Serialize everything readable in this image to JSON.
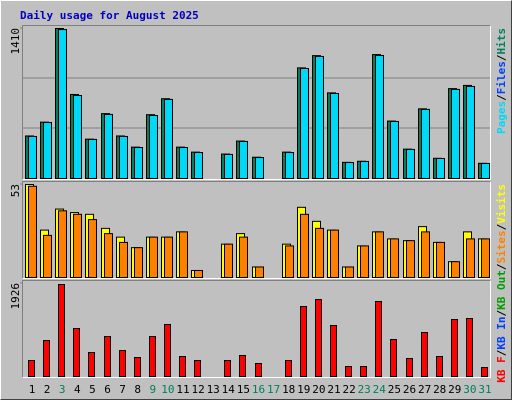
{
  "legend_separator": "/",
  "chart_data": [
    {
      "type": "bar",
      "title": "Daily usage for August 2025",
      "title_color": "#0000c0",
      "ylim": [
        0,
        1410
      ],
      "yticks": [
        1410
      ],
      "series": [
        {
          "name": "Hits",
          "color": "#00805c",
          "values": [
            400,
            530,
            1410,
            790,
            370,
            610,
            400,
            295,
            600,
            750,
            295,
            248,
            0,
            230,
            352,
            200,
            0,
            248,
            1040,
            1155,
            805,
            152,
            162,
            1165,
            540,
            276,
            655,
            190,
            845,
            875,
            143
          ]
        },
        {
          "name": "Files",
          "color": "#0040ff",
          "values": [
            395,
            526,
            1400,
            780,
            367,
            602,
            395,
            291,
            592,
            743,
            291,
            244,
            0,
            226,
            348,
            197,
            0,
            244,
            1034,
            1147,
            799,
            150,
            160,
            1156,
            536,
            273,
            649,
            188,
            837,
            865,
            141
          ]
        },
        {
          "name": "Pages",
          "color": "#00d8f8",
          "values": [
            395,
            526,
            1400,
            780,
            367,
            602,
            395,
            291,
            592,
            743,
            291,
            244,
            0,
            226,
            348,
            197,
            0,
            244,
            1034,
            1147,
            799,
            150,
            160,
            1156,
            536,
            273,
            649,
            188,
            837,
            865,
            141
          ]
        }
      ]
    },
    {
      "type": "bar",
      "ylim": [
        0,
        53
      ],
      "yticks": [
        53
      ],
      "series": [
        {
          "name": "Visits",
          "color": "#ffff00",
          "values": [
            53,
            27,
            39,
            37,
            36,
            28,
            23,
            17,
            23,
            23,
            26,
            4,
            0,
            19,
            25,
            6,
            0,
            19,
            40,
            32,
            27,
            6,
            18,
            26,
            22,
            21,
            29,
            20,
            9,
            26,
            22
          ]
        },
        {
          "name": "Sites",
          "color": "#ff8000",
          "values": [
            52,
            24,
            38,
            36,
            33,
            25,
            20,
            17,
            23,
            23,
            26,
            4,
            0,
            19,
            23,
            6,
            0,
            18,
            36,
            28,
            27,
            6,
            18,
            26,
            22,
            21,
            26,
            20,
            9,
            22,
            22
          ]
        }
      ]
    },
    {
      "type": "bar",
      "ylim": [
        0,
        1926
      ],
      "yticks": [
        1926
      ],
      "categories": [
        "1",
        "2",
        "3",
        "4",
        "5",
        "6",
        "7",
        "8",
        "9",
        "10",
        "11",
        "12",
        "13",
        "14",
        "15",
        "16",
        "17",
        "18",
        "19",
        "20",
        "21",
        "22",
        "23",
        "24",
        "25",
        "26",
        "27",
        "28",
        "29",
        "30",
        "31"
      ],
      "weekend_color": "#00805c",
      "weekend_indices": [
        2,
        8,
        9,
        15,
        16,
        22,
        23,
        29,
        30
      ],
      "series": [
        {
          "name": "KB F",
          "color": "#ff0000",
          "values": [
            331,
            745,
            1905,
            994,
            497,
            828,
            538,
            393,
            828,
            1077,
            414,
            331,
            0,
            331,
            435,
            269,
            0,
            331,
            1449,
            1594,
            1056,
            207,
            207,
            1553,
            766,
            373,
            911,
            414,
            1180,
            1201,
            186
          ]
        },
        {
          "name": "KB In",
          "color": "#0040ff",
          "values": [
            null,
            null,
            null,
            null,
            null,
            null,
            null,
            null,
            null,
            null,
            null,
            null,
            null,
            null,
            null,
            null,
            null,
            null,
            null,
            null,
            null,
            null,
            null,
            null,
            null,
            null,
            null,
            null,
            null,
            null,
            null
          ]
        },
        {
          "name": "KB Out",
          "color": "#00a000",
          "values": [
            null,
            null,
            null,
            null,
            null,
            null,
            null,
            null,
            null,
            null,
            null,
            null,
            null,
            null,
            null,
            null,
            null,
            null,
            null,
            null,
            null,
            null,
            null,
            null,
            null,
            null,
            null,
            null,
            null,
            null,
            null
          ]
        }
      ]
    }
  ]
}
